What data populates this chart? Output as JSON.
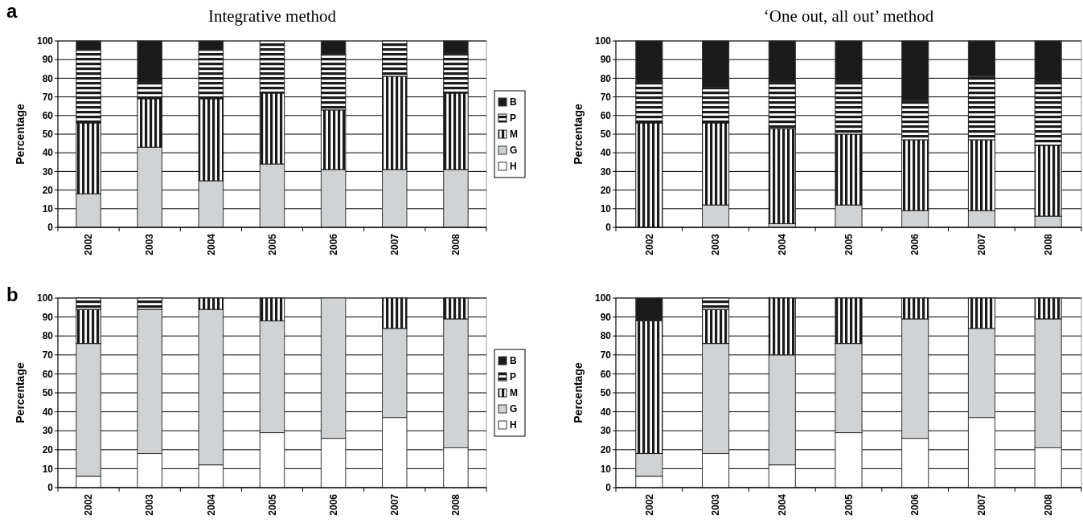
{
  "chart_data": [
    {
      "type": "bar",
      "stacked": true,
      "title": "Integrative method",
      "ylabel": "Percentage",
      "annotations": [
        "a"
      ],
      "categories": [
        "2002",
        "2003",
        "2004",
        "2005",
        "2006",
        "2007",
        "2008"
      ],
      "ylim": [
        0,
        100
      ],
      "yticks": [
        0,
        10,
        20,
        30,
        40,
        50,
        60,
        70,
        80,
        90,
        100
      ],
      "grid": "y",
      "legend": "right",
      "series": [
        {
          "name": "H",
          "color": "#ffffff",
          "values": [
            0,
            0,
            0,
            0,
            0,
            0,
            0
          ]
        },
        {
          "name": "G",
          "color": "#d0d2d3",
          "values": [
            18,
            43,
            25,
            34,
            31,
            31,
            31
          ]
        },
        {
          "name": "M",
          "color": "#1a1a1a",
          "values": [
            38,
            26,
            44,
            38,
            32,
            50,
            41
          ]
        },
        {
          "name": "P",
          "color": "#1a1a1a",
          "values": [
            39,
            9,
            26,
            28,
            30,
            19,
            21
          ]
        },
        {
          "name": "B",
          "color": "#1a1a1a",
          "values": [
            5,
            22,
            5,
            0,
            7,
            0,
            7
          ]
        }
      ]
    },
    {
      "type": "bar",
      "stacked": true,
      "title": "‘One out, all out’ method",
      "ylabel": "Percentage",
      "categories": [
        "2002",
        "2003",
        "2004",
        "2005",
        "2006",
        "2007",
        "2008"
      ],
      "ylim": [
        0,
        100
      ],
      "yticks": [
        0,
        10,
        20,
        30,
        40,
        50,
        60,
        70,
        80,
        90,
        100
      ],
      "grid": "y",
      "legend": false,
      "series": [
        {
          "color": "#d0d2d3",
          "values": [
            0,
            12,
            2,
            12,
            9,
            9,
            6
          ]
        },
        {
          "color": "#1a1a1a",
          "values": [
            56,
            44,
            51,
            38,
            38,
            38,
            38
          ]
        },
        {
          "color": "#1a1a1a",
          "values": [
            22,
            19,
            25,
            28,
            21,
            34,
            34
          ]
        },
        {
          "color": "#1a1a1a",
          "values": [
            22,
            25,
            22,
            22,
            32,
            19,
            22
          ]
        }
      ]
    },
    {
      "type": "bar",
      "stacked": true,
      "ylabel": "Percentage",
      "annotations": [
        "b"
      ],
      "categories": [
        "2002",
        "2003",
        "2004",
        "2005",
        "2006",
        "2007",
        "2008"
      ],
      "ylim": [
        0,
        100
      ],
      "yticks": [
        0,
        10,
        20,
        30,
        40,
        50,
        60,
        70,
        80,
        90,
        100
      ],
      "grid": "y",
      "legend": "right",
      "series": [
        {
          "name": "H",
          "color": "#ffffff",
          "values": [
            6,
            18,
            12,
            29,
            26,
            37,
            21
          ]
        },
        {
          "name": "G",
          "color": "#d0d2d3",
          "values": [
            70,
            76,
            82,
            59,
            74,
            47,
            68
          ]
        },
        {
          "name": "M",
          "color": "#1a1a1a",
          "values": [
            18,
            0,
            6,
            12,
            0,
            16,
            11
          ]
        },
        {
          "name": "P",
          "color": "#1a1a1a",
          "values": [
            6,
            6,
            0,
            0,
            0,
            0,
            0
          ]
        },
        {
          "name": "B",
          "color": "#1a1a1a",
          "values": [
            0,
            0,
            0,
            0,
            0,
            0,
            0
          ]
        }
      ]
    },
    {
      "type": "bar",
      "stacked": true,
      "ylabel": "Percentage",
      "categories": [
        "2002",
        "2003",
        "2004",
        "2005",
        "2006",
        "2007",
        "2008"
      ],
      "ylim": [
        0,
        100
      ],
      "yticks": [
        0,
        10,
        20,
        30,
        40,
        50,
        60,
        70,
        80,
        90,
        100
      ],
      "grid": "y",
      "legend": false,
      "series": [
        {
          "color": "#ffffff",
          "values": [
            6,
            18,
            12,
            29,
            26,
            37,
            21
          ]
        },
        {
          "color": "#d0d2d3",
          "values": [
            12,
            58,
            58,
            47,
            63,
            47,
            68
          ]
        },
        {
          "color": "#1a1a1a",
          "values": [
            70,
            18,
            30,
            24,
            11,
            16,
            11
          ]
        },
        {
          "color": "#1a1a1a",
          "values": [
            0,
            6,
            0,
            0,
            0,
            0,
            0
          ]
        },
        {
          "color": "#1a1a1a",
          "values": [
            12,
            0,
            0,
            0,
            0,
            0,
            0
          ]
        }
      ]
    }
  ]
}
